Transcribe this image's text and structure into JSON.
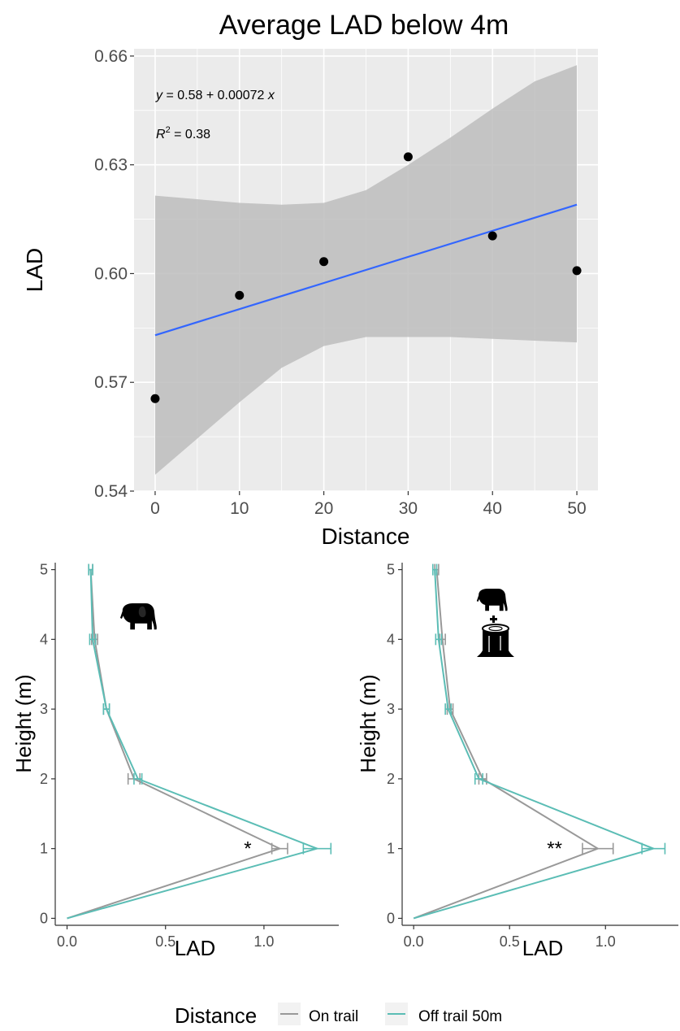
{
  "chart_data": [
    {
      "type": "scatter",
      "title": "Average LAD below 4m",
      "xlabel": "Distance",
      "ylabel": "LAD",
      "xlim": [
        -2.5,
        52.5
      ],
      "ylim": [
        0.54,
        0.662
      ],
      "xticks": [
        "0",
        "10",
        "20",
        "30",
        "40",
        "50"
      ],
      "yticks": [
        "0.54",
        "0.57",
        "0.60",
        "0.63",
        "0.66"
      ],
      "grid": true,
      "points": [
        {
          "x": 0,
          "y": 0.5655
        },
        {
          "x": 10,
          "y": 0.594
        },
        {
          "x": 20,
          "y": 0.6033
        },
        {
          "x": 30,
          "y": 0.6322
        },
        {
          "x": 40,
          "y": 0.6104
        },
        {
          "x": 50,
          "y": 0.6008
        }
      ],
      "fit": {
        "x_range": [
          0,
          50
        ],
        "y_start": 0.583,
        "y_end": 0.619,
        "color": "#3366FF",
        "ci_band": [
          {
            "x": 0,
            "lo": 0.5445,
            "hi": 0.6215
          },
          {
            "x": 5,
            "lo": 0.5545,
            "hi": 0.6205
          },
          {
            "x": 10,
            "lo": 0.5645,
            "hi": 0.6195
          },
          {
            "x": 15,
            "lo": 0.574,
            "hi": 0.619
          },
          {
            "x": 20,
            "lo": 0.58,
            "hi": 0.6195
          },
          {
            "x": 25,
            "lo": 0.5825,
            "hi": 0.623
          },
          {
            "x": 30,
            "lo": 0.5825,
            "hi": 0.63
          },
          {
            "x": 35,
            "lo": 0.5825,
            "hi": 0.6375
          },
          {
            "x": 40,
            "lo": 0.582,
            "hi": 0.6455
          },
          {
            "x": 45,
            "lo": 0.5815,
            "hi": 0.653
          },
          {
            "x": 50,
            "lo": 0.581,
            "hi": 0.6575
          }
        ]
      },
      "annotations": {
        "equation_prefix": "y",
        "equation_rest": " = 0.58 + 0.00072 ",
        "equation_var": "x",
        "r2_label": "R",
        "r2_sup": "2",
        "r2_value": " = 0.38"
      }
    },
    {
      "type": "line",
      "xlabel": "LAD",
      "ylabel": "Height (m)",
      "xlim": [
        -0.06,
        1.38
      ],
      "ylim": [
        -0.1,
        5.1
      ],
      "xticks": [
        "0.0",
        "0.5",
        "1.0"
      ],
      "yticks": [
        "0",
        "1",
        "2",
        "3",
        "4",
        "5"
      ],
      "icon": "elephant-icon",
      "significance": "*",
      "series": [
        {
          "name": "On trail",
          "color": "#999999",
          "height": [
            0,
            1,
            2,
            3,
            4,
            5
          ],
          "values": [
            0.0,
            1.08,
            0.34,
            0.2,
            0.14,
            0.12
          ],
          "err": [
            0,
            0.04,
            0.03,
            0.015,
            0.015,
            0.01
          ]
        },
        {
          "name": "Off trail 50m",
          "color": "#5BBDB5",
          "height": [
            0,
            1,
            2,
            3,
            4,
            5
          ],
          "values": [
            0.0,
            1.27,
            0.36,
            0.2,
            0.13,
            0.12
          ],
          "err": [
            0,
            0.07,
            0.02,
            0.015,
            0.015,
            0.01
          ]
        }
      ]
    },
    {
      "type": "line",
      "xlabel": "LAD",
      "ylabel": "Height (m)",
      "xlim": [
        -0.06,
        1.38
      ],
      "ylim": [
        -0.1,
        5.1
      ],
      "xticks": [
        "0.0",
        "0.5",
        "1.0"
      ],
      "yticks": [
        "0",
        "1",
        "2",
        "3",
        "4",
        "5"
      ],
      "icon": "elephant-plus-stump-icon",
      "significance": "**",
      "series": [
        {
          "name": "On trail",
          "color": "#999999",
          "height": [
            0,
            1,
            2,
            3,
            4,
            5
          ],
          "values": [
            0.0,
            0.96,
            0.36,
            0.19,
            0.15,
            0.12
          ],
          "err": [
            0,
            0.08,
            0.02,
            0.015,
            0.015,
            0.01
          ]
        },
        {
          "name": "Off trail 50m",
          "color": "#5BBDB5",
          "height": [
            0,
            1,
            2,
            3,
            4,
            5
          ],
          "values": [
            0.0,
            1.25,
            0.34,
            0.18,
            0.13,
            0.11
          ],
          "err": [
            0,
            0.06,
            0.02,
            0.015,
            0.015,
            0.01
          ]
        }
      ]
    }
  ],
  "legend": {
    "title": "Distance",
    "items": [
      {
        "label": "On trail",
        "color": "#999999"
      },
      {
        "label": "Off trail 50m",
        "color": "#5BBDB5"
      }
    ]
  }
}
